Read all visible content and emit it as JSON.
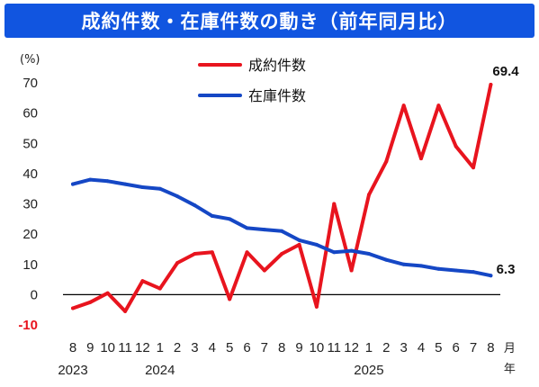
{
  "title": "成約件数・在庫件数の動き（前年同月比）",
  "chart_data": {
    "type": "line",
    "ylabel": "(%)",
    "ylim": [
      -10,
      70
    ],
    "yticks": [
      -10,
      0,
      10,
      20,
      30,
      40,
      50,
      60,
      70
    ],
    "x_month_labels": [
      "8",
      "9",
      "10",
      "11",
      "12",
      "1",
      "2",
      "3",
      "4",
      "5",
      "6",
      "7",
      "8",
      "9",
      "10",
      "11",
      "12",
      "1",
      "2",
      "3",
      "4",
      "5",
      "6",
      "7",
      "8"
    ],
    "x_unit_month": "月",
    "x_unit_year": "年",
    "year_labels": [
      {
        "label": "2023",
        "index": 0
      },
      {
        "label": "2024",
        "index": 5
      },
      {
        "label": "2025",
        "index": 17
      }
    ],
    "series": [
      {
        "name": "成約件数",
        "color": "#e8141e",
        "values": [
          -4.5,
          -2.5,
          0.5,
          -5.5,
          4.5,
          2,
          10.5,
          13.5,
          14,
          -1.5,
          14,
          8,
          13.5,
          16.5,
          -4,
          30,
          8,
          33,
          44,
          62.5,
          45,
          62.5,
          49,
          42,
          69.4
        ],
        "end_label": "69.4"
      },
      {
        "name": "在庫件数",
        "color": "#1547c5",
        "values": [
          36.5,
          38,
          37.5,
          36.5,
          35.5,
          35,
          32.5,
          29.5,
          26,
          25,
          22,
          21.5,
          21,
          18,
          16.5,
          14,
          14.5,
          13.5,
          11.5,
          10,
          9.5,
          8.5,
          8,
          7.5,
          6.3
        ],
        "end_label": "6.3"
      }
    ],
    "zero_line": true,
    "legend_position": "top-center"
  }
}
